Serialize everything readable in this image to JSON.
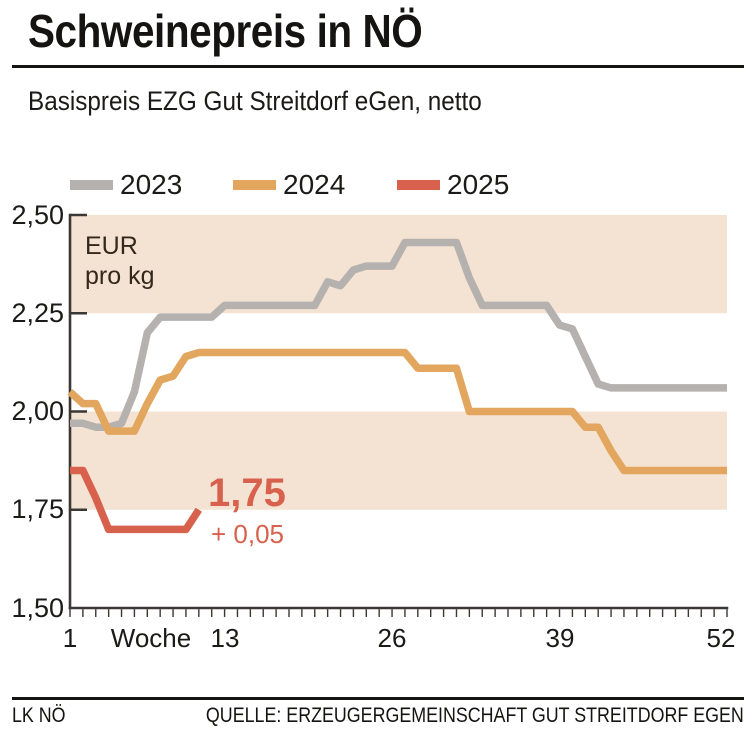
{
  "header": {
    "title": "Schweinepreis in NÖ",
    "subtitle": "Basispreis EZG Gut Streitdorf eGen, netto"
  },
  "legend": [
    {
      "label": "2023",
      "color": "#b5b1ae"
    },
    {
      "label": "2024",
      "color": "#e3a65e"
    },
    {
      "label": "2025",
      "color": "#d8614d"
    }
  ],
  "chart_data": {
    "type": "line",
    "title": "Schweinepreis in NÖ",
    "subtitle": "Basispreis EZG Gut Streitdorf eGen, netto",
    "ylabel_line1": "EUR",
    "ylabel_line2": "pro kg",
    "xlabel": "Woche",
    "ylim": [
      1.5,
      2.5
    ],
    "xlim": [
      1,
      52
    ],
    "x_step": 1,
    "grid": "alternating-bands",
    "legend_position": "top",
    "band_color": "#f4e3d2",
    "bands": [
      [
        2.25,
        2.5
      ],
      [
        1.75,
        2.0
      ]
    ],
    "yticks": {
      "values": [
        2.5,
        2.25,
        2.0,
        1.75,
        1.5
      ],
      "labels": [
        "2,50",
        "2,25",
        "2,00",
        "1,75",
        "1,50"
      ]
    },
    "xticks": {
      "values": [
        1,
        13,
        26,
        39,
        52
      ],
      "labels": [
        "1",
        "13",
        "26",
        "39",
        "52"
      ]
    },
    "series": [
      {
        "name": "2023",
        "color": "#b5b1ae",
        "x_start": 1,
        "values": [
          1.97,
          1.97,
          1.96,
          1.96,
          1.97,
          2.05,
          2.2,
          2.24,
          2.24,
          2.24,
          2.24,
          2.24,
          2.27,
          2.27,
          2.27,
          2.27,
          2.27,
          2.27,
          2.27,
          2.27,
          2.33,
          2.32,
          2.36,
          2.37,
          2.37,
          2.37,
          2.43,
          2.43,
          2.43,
          2.43,
          2.43,
          2.34,
          2.27,
          2.27,
          2.27,
          2.27,
          2.27,
          2.27,
          2.22,
          2.21,
          2.14,
          2.07,
          2.06,
          2.06,
          2.06,
          2.06,
          2.06,
          2.06,
          2.06,
          2.06,
          2.06,
          2.06
        ]
      },
      {
        "name": "2024",
        "color": "#e3a65e",
        "x_start": 1,
        "values": [
          2.05,
          2.02,
          2.02,
          1.95,
          1.95,
          1.95,
          2.02,
          2.08,
          2.09,
          2.14,
          2.15,
          2.15,
          2.15,
          2.15,
          2.15,
          2.15,
          2.15,
          2.15,
          2.15,
          2.15,
          2.15,
          2.15,
          2.15,
          2.15,
          2.15,
          2.15,
          2.15,
          2.11,
          2.11,
          2.11,
          2.11,
          2.0,
          2.0,
          2.0,
          2.0,
          2.0,
          2.0,
          2.0,
          2.0,
          2.0,
          1.96,
          1.96,
          1.9,
          1.85,
          1.85,
          1.85,
          1.85,
          1.85,
          1.85,
          1.85,
          1.85,
          1.85
        ]
      },
      {
        "name": "2025",
        "color": "#d8614d",
        "x_start": 1,
        "values": [
          1.85,
          1.85,
          1.78,
          1.7,
          1.7,
          1.7,
          1.7,
          1.7,
          1.7,
          1.7,
          1.75
        ]
      }
    ],
    "annotation": {
      "value": "1,75",
      "change": "+ 0,05",
      "color": "#d8614d"
    }
  },
  "footer": {
    "left": "LK NÖ",
    "right": "QUELLE: ERZEUGERGEMEINSCHAFT GUT STREITDORF EGEN"
  }
}
